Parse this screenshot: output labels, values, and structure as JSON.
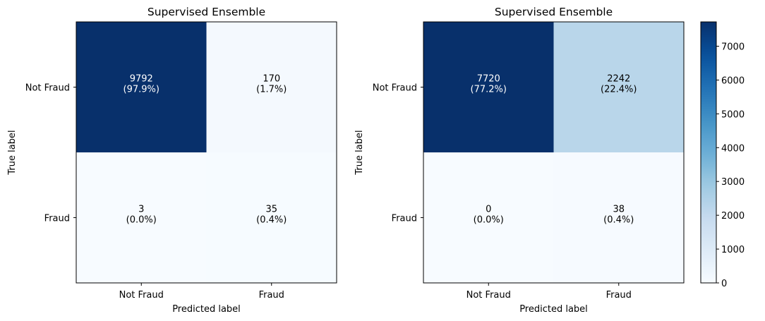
{
  "chart_data": [
    {
      "type": "heatmap",
      "title": "Supervised Ensemble",
      "xlabel": "Predicted label",
      "ylabel": "True label",
      "x_categories": [
        "Not Fraud",
        "Fraud"
      ],
      "y_categories": [
        "Not Fraud",
        "Fraud"
      ],
      "values": [
        [
          9792,
          170
        ],
        [
          3,
          35
        ]
      ],
      "cell_labels": [
        [
          "9792\n(97.9%)",
          "170\n(1.7%)"
        ],
        [
          "3\n(0.0%)",
          "35\n(0.4%)"
        ]
      ],
      "colormap": "Blues",
      "vmin": 3,
      "vmax": 9792,
      "colorbar": false
    },
    {
      "type": "heatmap",
      "title": "Supervised Ensemble",
      "xlabel": "Predicted label",
      "ylabel": "True label",
      "x_categories": [
        "Not Fraud",
        "Fraud"
      ],
      "y_categories": [
        "Not Fraud",
        "Fraud"
      ],
      "values": [
        [
          7720,
          2242
        ],
        [
          0,
          38
        ]
      ],
      "cell_labels": [
        [
          "7720\n(77.2%)",
          "2242\n(22.4%)"
        ],
        [
          "0\n(0.0%)",
          "38\n(0.4%)"
        ]
      ],
      "colormap": "Blues",
      "vmin": 0,
      "vmax": 7720,
      "colorbar": true,
      "colorbar_ticks": [
        0,
        1000,
        2000,
        3000,
        4000,
        5000,
        6000,
        7000
      ]
    }
  ]
}
